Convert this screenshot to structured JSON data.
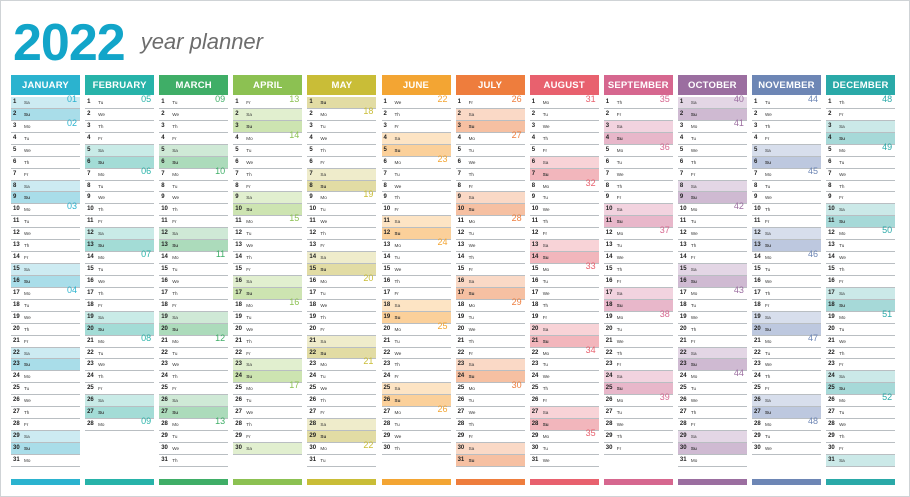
{
  "header": {
    "year": "2022",
    "subtitle": "year planner"
  },
  "weekday_abbr": [
    "Mo",
    "Tu",
    "We",
    "Th",
    "Fr",
    "Sa",
    "Su"
  ],
  "months": [
    {
      "name": "JANUARY",
      "color": "#2bb3cf",
      "tint": "#cdebf2",
      "tint_su": "#a9dde9",
      "days": 31,
      "first_weekday": 5,
      "weeks": [
        "01",
        "02",
        "03",
        "04"
      ]
    },
    {
      "name": "FEBRUARY",
      "color": "#27b3a9",
      "tint": "#c9ebe7",
      "tint_su": "#a3dcd6",
      "days": 28,
      "first_weekday": 1,
      "weeks": [
        "05",
        "06",
        "07",
        "08",
        "09"
      ]
    },
    {
      "name": "MARCH",
      "color": "#3fae67",
      "tint": "#cfe9d6",
      "tint_su": "#acdbbb",
      "days": 31,
      "first_weekday": 1,
      "weeks": [
        "09",
        "10",
        "11",
        "12",
        "13"
      ]
    },
    {
      "name": "APRIL",
      "color": "#8cc152",
      "tint": "#e1efcf",
      "tint_su": "#cde4b1",
      "days": 30,
      "first_weekday": 4,
      "weeks": [
        "13",
        "14",
        "15",
        "16",
        "17"
      ]
    },
    {
      "name": "MAY",
      "color": "#c9bd37",
      "tint": "#efeccb",
      "tint_su": "#e2dca4",
      "days": 31,
      "first_weekday": 6,
      "weeks": [
        "18",
        "19",
        "20",
        "21",
        "22"
      ]
    },
    {
      "name": "JUNE",
      "color": "#f3a533",
      "tint": "#fde4c4",
      "tint_su": "#fbd09a",
      "days": 30,
      "first_weekday": 2,
      "weeks": [
        "22",
        "23",
        "24",
        "25",
        "26"
      ]
    },
    {
      "name": "JULY",
      "color": "#ee7d3d",
      "tint": "#fad9c6",
      "tint_su": "#f6c0a2",
      "days": 31,
      "first_weekday": 4,
      "weeks": [
        "26",
        "27",
        "28",
        "29",
        "30"
      ]
    },
    {
      "name": "AUGUST",
      "color": "#e8616e",
      "tint": "#f8d3d7",
      "tint_su": "#f2b6bc",
      "days": 31,
      "first_weekday": 0,
      "weeks": [
        "31",
        "32",
        "33",
        "34",
        "35"
      ]
    },
    {
      "name": "SEPTEMBER",
      "color": "#d6678f",
      "tint": "#f2d3df",
      "tint_su": "#e8b7ca",
      "days": 30,
      "first_weekday": 3,
      "weeks": [
        "35",
        "36",
        "37",
        "38",
        "39"
      ]
    },
    {
      "name": "OCTOBER",
      "color": "#9b6ea0",
      "tint": "#e3d6e5",
      "tint_su": "#cfbad2",
      "days": 31,
      "first_weekday": 5,
      "weeks": [
        "40",
        "41",
        "42",
        "43",
        "44"
      ]
    },
    {
      "name": "NOVEMBER",
      "color": "#6d86b5",
      "tint": "#d7deec",
      "tint_su": "#bdc8df",
      "days": 30,
      "first_weekday": 1,
      "weeks": [
        "44",
        "45",
        "46",
        "47",
        "48"
      ]
    },
    {
      "name": "DECEMBER",
      "color": "#2aa9a8",
      "tint": "#cbe9e8",
      "tint_su": "#a6d9d8",
      "days": 31,
      "first_weekday": 3,
      "weeks": [
        "48",
        "49",
        "50",
        "51",
        "52"
      ]
    }
  ]
}
